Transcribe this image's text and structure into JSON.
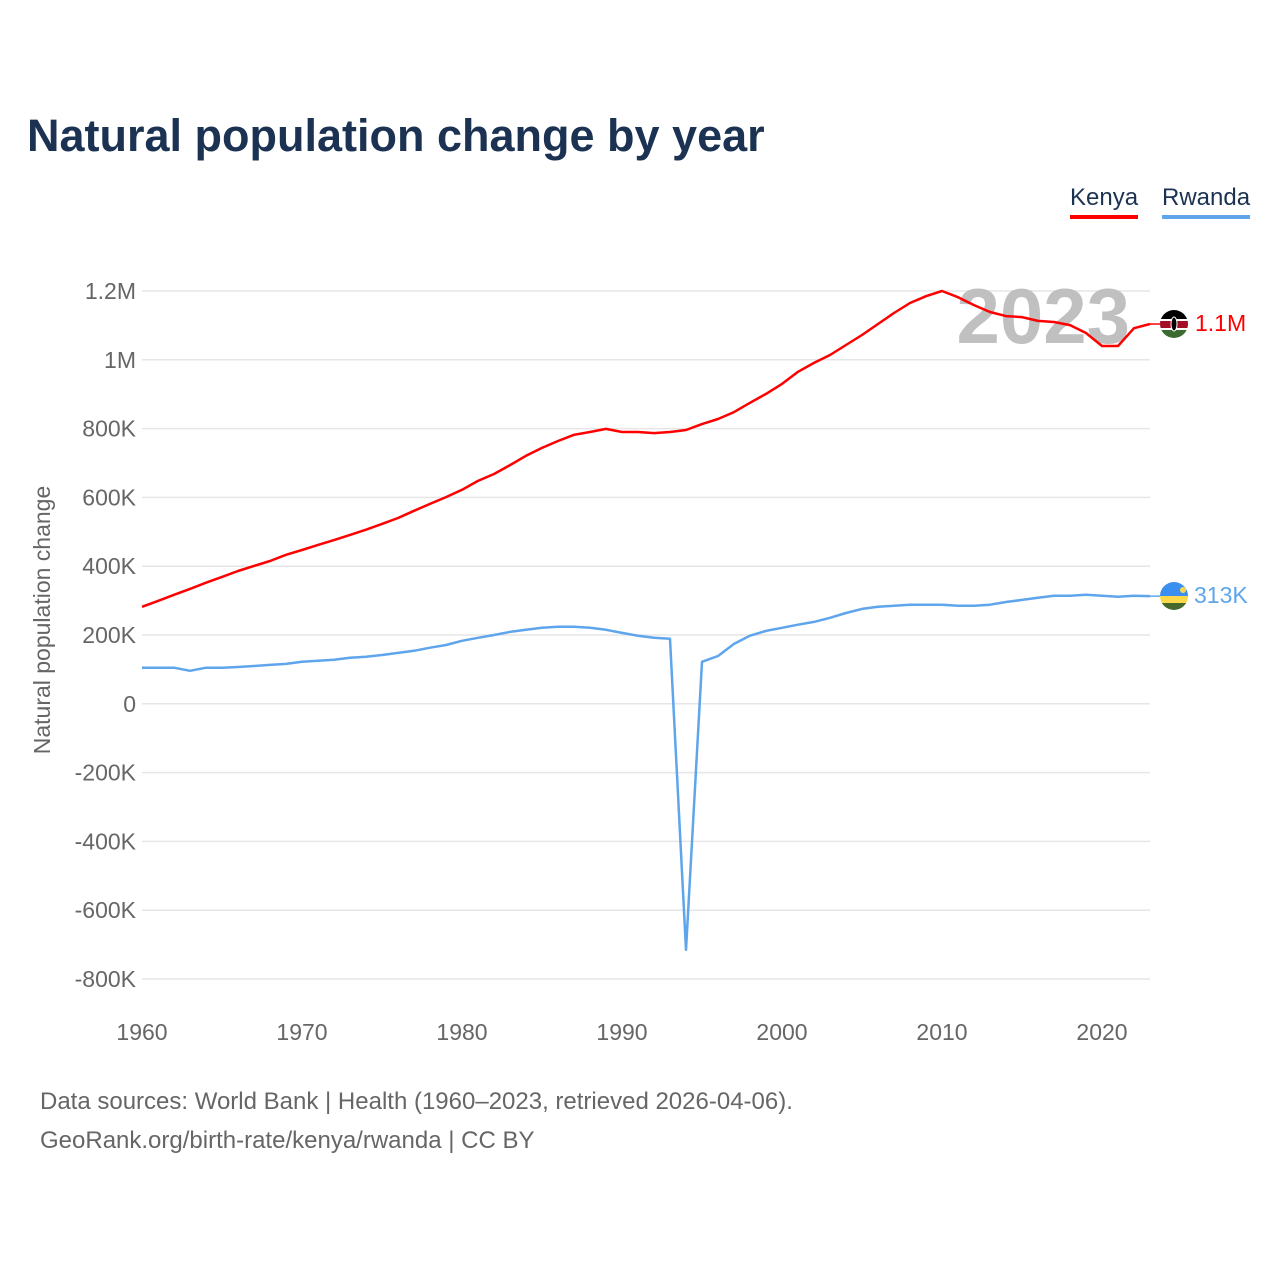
{
  "chart_data": {
    "type": "line",
    "title": "Natural population change by year",
    "xlabel": "",
    "ylabel": "Natural population change",
    "xlim": [
      1960,
      2023
    ],
    "ylim": [
      -800000,
      1200000
    ],
    "x_ticks": [
      "1960",
      "1970",
      "1980",
      "1990",
      "2000",
      "2010",
      "2020"
    ],
    "y_ticks": [
      {
        "value": 1200000,
        "label": "1.2M"
      },
      {
        "value": 1000000,
        "label": "1M"
      },
      {
        "value": 800000,
        "label": "800K"
      },
      {
        "value": 600000,
        "label": "600K"
      },
      {
        "value": 400000,
        "label": "400K"
      },
      {
        "value": 200000,
        "label": "200K"
      },
      {
        "value": 0,
        "label": "0"
      },
      {
        "value": -200000,
        "label": "-200K"
      },
      {
        "value": -400000,
        "label": "-400K"
      },
      {
        "value": -600000,
        "label": "-600K"
      },
      {
        "value": -800000,
        "label": "-800K"
      }
    ],
    "grid": true,
    "legend_position": "top-right",
    "year_watermark": "2023",
    "x_start": 1960,
    "series": [
      {
        "name": "Kenya",
        "color": "#ff0000",
        "end_label": "1.1M",
        "flag": "kenya-flag",
        "values_thousands": [
          282,
          299,
          317,
          334,
          352,
          369,
          386,
          401,
          415,
          433,
          447,
          462,
          476,
          491,
          506,
          523,
          540,
          561,
          581,
          601,
          622,
          648,
          668,
          694,
          721,
          744,
          764,
          782,
          790,
          799,
          790,
          790,
          787,
          790,
          796,
          813,
          828,
          848,
          875,
          901,
          930,
          965,
          991,
          1014,
          1043,
          1072,
          1104,
          1136,
          1165,
          1185,
          1200,
          1182,
          1159,
          1139,
          1127,
          1124,
          1113,
          1110,
          1101,
          1078,
          1040,
          1040,
          1092,
          1104
        ]
      },
      {
        "name": "Rwanda",
        "color": "#5ea5ec",
        "end_label": "313K",
        "flag": "rwanda-flag",
        "values_thousands": [
          105,
          105,
          105,
          96,
          105,
          105,
          107,
          110,
          113,
          116,
          122,
          125,
          128,
          134,
          137,
          142,
          148,
          154,
          163,
          171,
          183,
          192,
          200,
          209,
          215,
          221,
          224,
          224,
          221,
          215,
          206,
          198,
          192,
          189,
          -715,
          122,
          139,
          174,
          198,
          212,
          221,
          230,
          238,
          250,
          264,
          276,
          282,
          285,
          288,
          288,
          288,
          285,
          285,
          288,
          296,
          302,
          308,
          314,
          314,
          317,
          314,
          311,
          314,
          313
        ]
      }
    ]
  },
  "footer": {
    "sources": "Data sources: World Bank | Health (1960–2023, retrieved 2026-04-06).",
    "link": "GeoRank.org/birth-rate/kenya/rwanda | CC BY"
  }
}
